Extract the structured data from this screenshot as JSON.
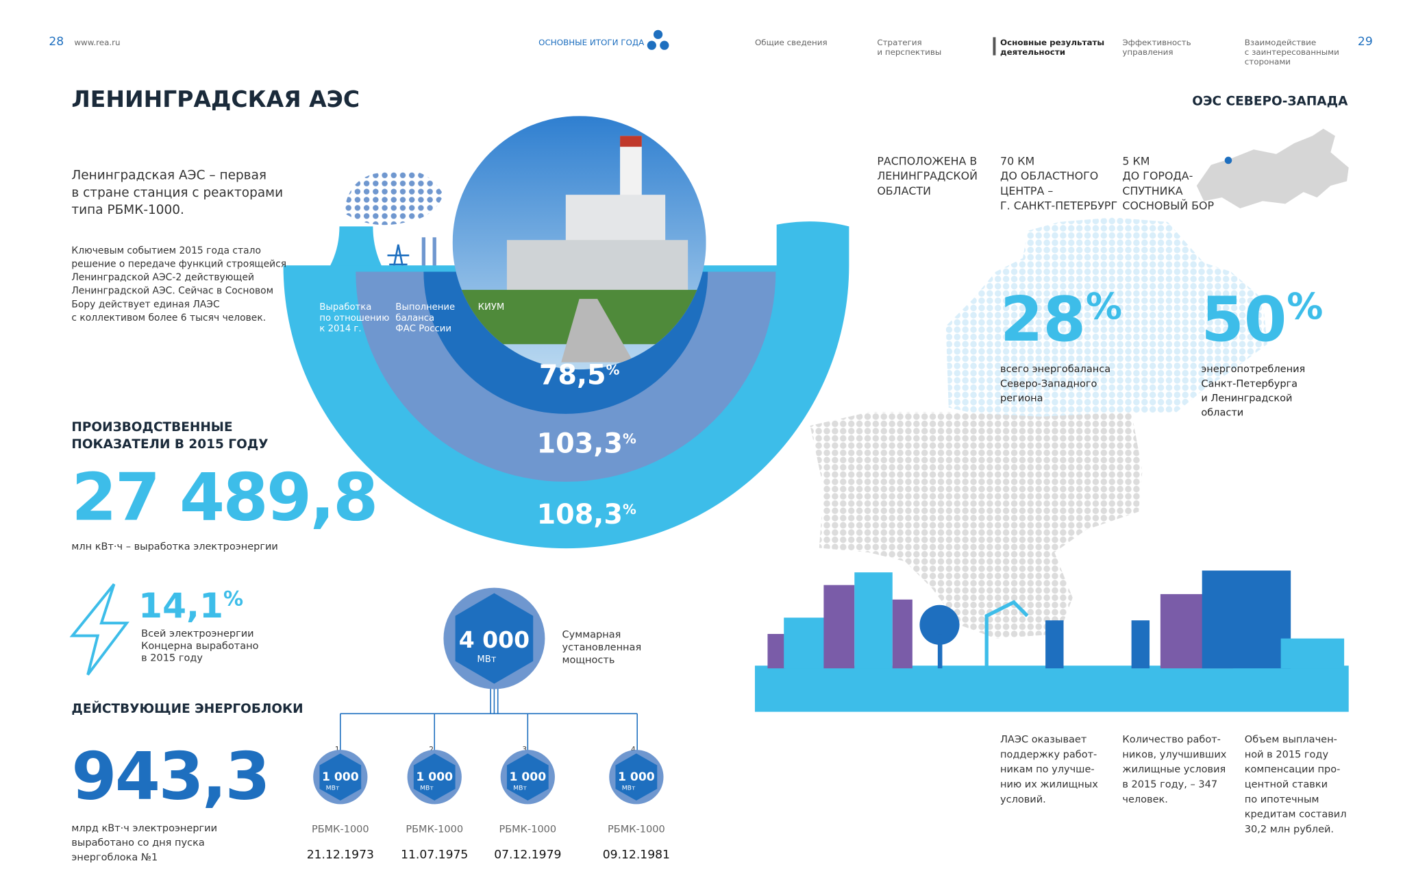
{
  "header": {
    "page_left": "28",
    "url": "www.rea.ru",
    "section": "ОСНОВНЫЕ ИТОГИ ГОДА",
    "nav": [
      [
        "Общие сведения"
      ],
      [
        "Стратегия",
        "и перспективы"
      ],
      [
        "Основные результаты",
        "деятельности"
      ],
      [
        "Эффективность",
        "управления"
      ],
      [
        "Взаимодействие",
        "с заинтересованными",
        "сторонами"
      ]
    ],
    "page_right": "29"
  },
  "title": "ЛЕНИНГРАДСКАЯ АЭС",
  "region": "ОЭС СЕВЕРО-ЗАПАДА",
  "intro": [
    "Ленинградская АЭС – первая",
    "в стране станция с реакторами",
    "типа РБМК-1000."
  ],
  "body": [
    "Ключевым событием 2015 года стало",
    "решение о передаче функций строящейся",
    "Ленинградской АЭС-2 действующей",
    "Ленинградской АЭС. Сейчас в Сосновом",
    "Бору действует единая ЛАЭС",
    "с коллективом более 6 тысяч человек."
  ],
  "rings": [
    {
      "label": [
        "Выработка",
        "по отношению",
        "к 2014 г."
      ],
      "value": "108,3",
      "unit": "%"
    },
    {
      "label": [
        "Выполнение",
        "баланса",
        "ФАС России"
      ],
      "value": "103,3",
      "unit": "%"
    },
    {
      "label": [
        "КИУМ"
      ],
      "value": "78,5",
      "unit": "%"
    }
  ],
  "production": {
    "heading": [
      "ПРОИЗВОДСТВЕННЫЕ",
      "ПОКАЗАТЕЛИ В 2015 ГОДУ"
    ],
    "value": "27 489,8",
    "caption": "млн кВт·ч – выработка электроэнергии",
    "share": {
      "value": "14,1",
      "unit": "%",
      "text": [
        "Всей электроэнергии",
        "Концерна выработано",
        "в 2015 году"
      ]
    }
  },
  "units_block": {
    "heading": "ДЕЙСТВУЮЩИЕ ЭНЕРГОБЛОКИ",
    "value": "943,3",
    "caption": [
      "млрд кВт·ч электроэнергии",
      "выработано со дня пуска",
      "энергоблока №1"
    ]
  },
  "capacity": {
    "value": "4 000",
    "unit": "МВт",
    "text": [
      "Суммарная",
      "установленная",
      "мощность"
    ]
  },
  "units": [
    {
      "num": "1",
      "value": "1 000",
      "unit": "МВт",
      "type": "РБМК-1000",
      "date": "21.12.1973"
    },
    {
      "num": "2",
      "value": "1 000",
      "unit": "МВт",
      "type": "РБМК-1000",
      "date": "11.07.1975"
    },
    {
      "num": "3",
      "value": "1 000",
      "unit": "МВт",
      "type": "РБМК-1000",
      "date": "07.12.1979"
    },
    {
      "num": "4",
      "value": "1 000",
      "unit": "МВт",
      "type": "РБМК-1000",
      "date": "09.12.1981"
    }
  ],
  "location": [
    [
      "РАСПОЛОЖЕНА В",
      "ЛЕНИНГРАДСКОЙ",
      "ОБЛАСТИ"
    ],
    [
      "70 КМ",
      "ДО ОБЛАСТНОГО",
      "ЦЕНТРА –",
      "Г. САНКТ-ПЕТЕРБУРГ"
    ],
    [
      "5 КМ",
      "ДО ГОРОДА-",
      "СПУТНИКА",
      "СОСНОВЫЙ БОР"
    ]
  ],
  "shares": [
    {
      "value": "28",
      "unit": "%",
      "text": [
        "всего энергобаланса",
        "Северо-Западного",
        "региона"
      ]
    },
    {
      "value": "50",
      "unit": "%",
      "text": [
        "энергопотребления",
        "Санкт-Петербурга",
        "и Ленинградской",
        "области"
      ]
    }
  ],
  "social": [
    [
      "ЛАЭС оказывает",
      "поддержку работ-",
      "никам по улучше-",
      "нию их жилищных",
      "условий."
    ],
    [
      "Количество работ-",
      "ников, улучшивших",
      "жилищные условия",
      "в 2015 году, – 347",
      "человек."
    ],
    [
      "Объем выплачен-",
      "ной в 2015 году",
      "компенсации про-",
      "центной ставки",
      "по ипотечным",
      "кредитам составил",
      "30,2 млн рублей."
    ]
  ]
}
